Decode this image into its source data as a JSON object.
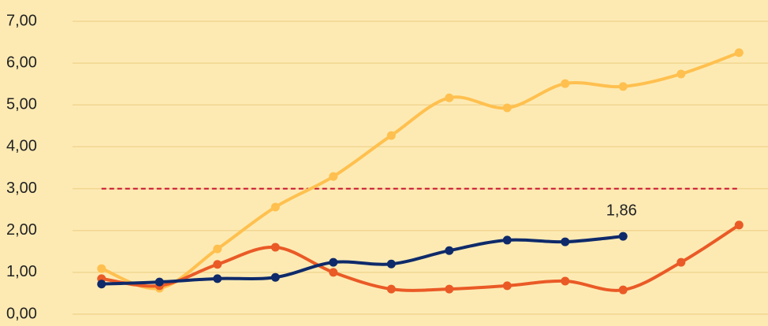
{
  "chart_data": {
    "type": "line",
    "categories": [
      null,
      null,
      null,
      null,
      null,
      null,
      null,
      null,
      null,
      null,
      null,
      null
    ],
    "series": [
      {
        "color": "#ffc04f",
        "values": [
          1.09,
          0.62,
          1.56,
          2.56,
          3.29,
          4.27,
          5.17,
          4.93,
          5.51,
          5.44,
          5.74,
          6.25
        ]
      },
      {
        "color": "#ea5a26",
        "values": [
          0.85,
          0.68,
          1.19,
          1.6,
          1.0,
          0.6,
          0.6,
          0.68,
          0.79,
          0.58,
          1.24,
          2.13
        ]
      },
      {
        "color": "#0e2a6a",
        "values": [
          0.72,
          0.77,
          0.85,
          0.88,
          1.24,
          1.2,
          1.52,
          1.77,
          1.73,
          1.86,
          null,
          null
        ],
        "value_labels": [
          null,
          null,
          null,
          null,
          null,
          null,
          null,
          null,
          null,
          "1,86",
          null,
          null
        ]
      }
    ],
    "reference_line": {
      "value": 3,
      "color": "#c8102e"
    },
    "ylim": [
      0,
      7
    ],
    "yticks": [
      {
        "value": 0,
        "label": "0,00"
      },
      {
        "value": 1,
        "label": "1,00"
      },
      {
        "value": 2,
        "label": "2,00"
      },
      {
        "value": 3,
        "label": "3,00"
      },
      {
        "value": 4,
        "label": "4,00"
      },
      {
        "value": 5,
        "label": "5,00"
      },
      {
        "value": 6,
        "label": "6,00"
      },
      {
        "value": 7,
        "label": "7,00"
      }
    ],
    "grid": true
  }
}
